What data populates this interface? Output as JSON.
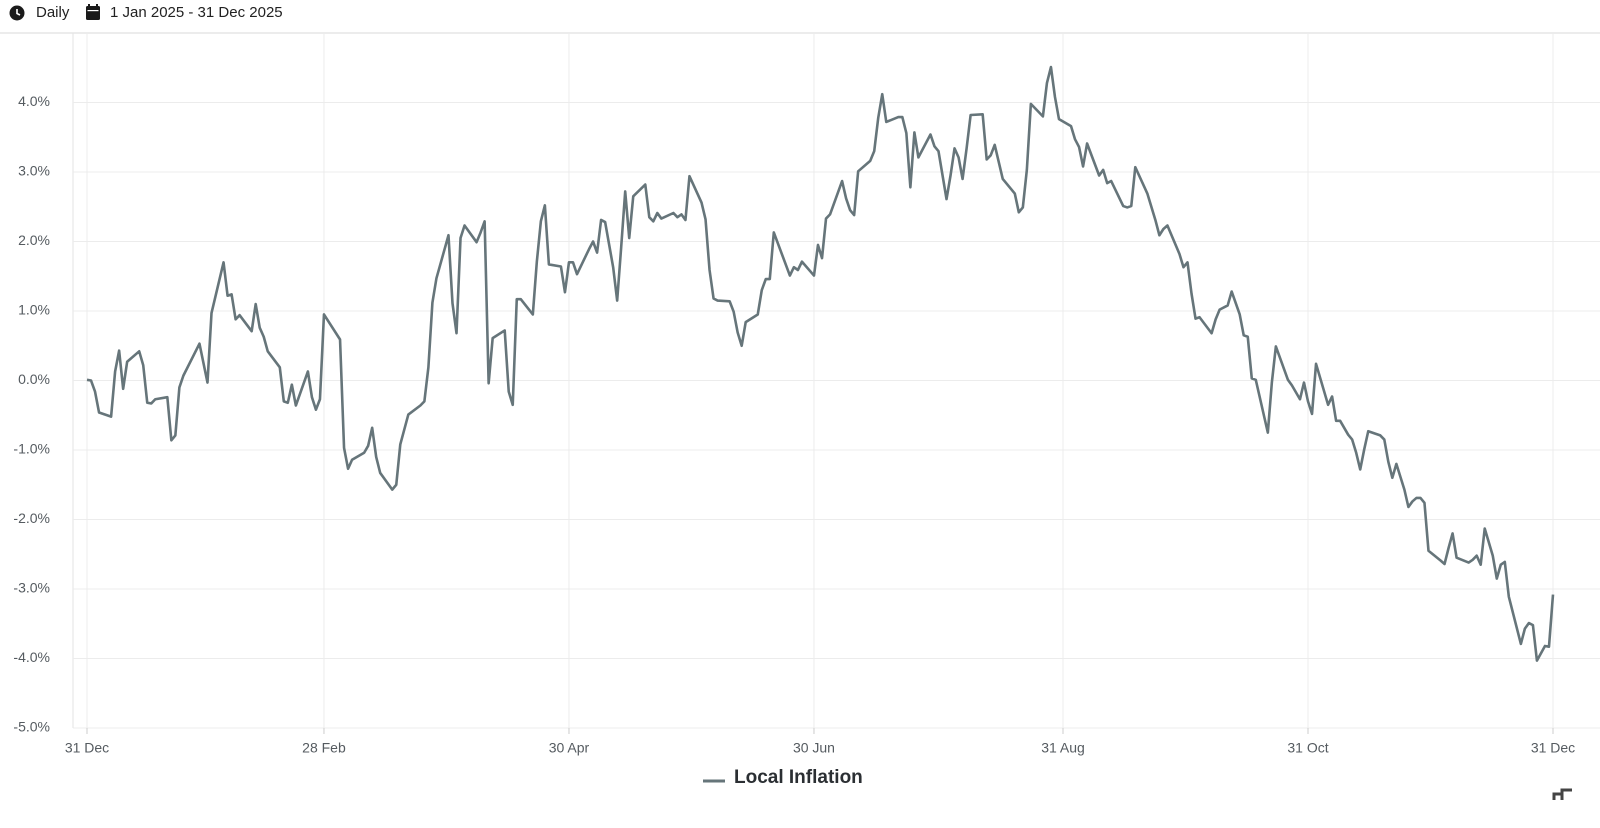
{
  "header": {
    "frequency": "Daily",
    "date_range": "1 Jan 2025 - 31 Dec 2025"
  },
  "chart_data": {
    "type": "line",
    "x": [
      "2024-12-31",
      "2025-01-01",
      "2025-01-02",
      "2025-01-03",
      "2025-01-06",
      "2025-01-07",
      "2025-01-08",
      "2025-01-09",
      "2025-01-10",
      "2025-01-13",
      "2025-01-14",
      "2025-01-15",
      "2025-01-16",
      "2025-01-17",
      "2025-01-20",
      "2025-01-21",
      "2025-01-22",
      "2025-01-23",
      "2025-01-24",
      "2025-01-28",
      "2025-01-30",
      "2025-01-31",
      "2025-02-03",
      "2025-02-04",
      "2025-02-05",
      "2025-02-06",
      "2025-02-07",
      "2025-02-10",
      "2025-02-11",
      "2025-02-12",
      "2025-02-13",
      "2025-02-14",
      "2025-02-17",
      "2025-02-18",
      "2025-02-19",
      "2025-02-20",
      "2025-02-21",
      "2025-02-24",
      "2025-02-25",
      "2025-02-26",
      "2025-02-27",
      "2025-02-28",
      "2025-03-04",
      "2025-03-05",
      "2025-03-06",
      "2025-03-07",
      "2025-03-10",
      "2025-03-11",
      "2025-03-12",
      "2025-03-13",
      "2025-03-14",
      "2025-03-17",
      "2025-03-18",
      "2025-03-19",
      "2025-03-21",
      "2025-03-24",
      "2025-03-25",
      "2025-03-26",
      "2025-03-27",
      "2025-03-28",
      "2025-03-31",
      "2025-04-01",
      "2025-04-02",
      "2025-04-03",
      "2025-04-04",
      "2025-04-07",
      "2025-04-08",
      "2025-04-09",
      "2025-04-10",
      "2025-04-11",
      "2025-04-14",
      "2025-04-15",
      "2025-04-16",
      "2025-04-17",
      "2025-04-18",
      "2025-04-21",
      "2025-04-22",
      "2025-04-23",
      "2025-04-24",
      "2025-04-25",
      "2025-04-28",
      "2025-04-29",
      "2025-04-30",
      "2025-05-01",
      "2025-05-02",
      "2025-05-05",
      "2025-05-06",
      "2025-05-07",
      "2025-05-08",
      "2025-05-09",
      "2025-05-11",
      "2025-05-12",
      "2025-05-13",
      "2025-05-14",
      "2025-05-15",
      "2025-05-16",
      "2025-05-19",
      "2025-05-20",
      "2025-05-21",
      "2025-05-22",
      "2025-05-23",
      "2025-05-26",
      "2025-05-27",
      "2025-05-28",
      "2025-05-29",
      "2025-05-30",
      "2025-06-02",
      "2025-06-03",
      "2025-06-04",
      "2025-06-05",
      "2025-06-06",
      "2025-06-09",
      "2025-06-10",
      "2025-06-11",
      "2025-06-12",
      "2025-06-13",
      "2025-06-16",
      "2025-06-17",
      "2025-06-18",
      "2025-06-19",
      "2025-06-20",
      "2025-06-24",
      "2025-06-25",
      "2025-06-26",
      "2025-06-27",
      "2025-06-30",
      "2025-07-01",
      "2025-07-02",
      "2025-07-03",
      "2025-07-04",
      "2025-07-07",
      "2025-07-08",
      "2025-07-09",
      "2025-07-10",
      "2025-07-11",
      "2025-07-14",
      "2025-07-15",
      "2025-07-16",
      "2025-07-17",
      "2025-07-18",
      "2025-07-21",
      "2025-07-22",
      "2025-07-23",
      "2025-07-24",
      "2025-07-25",
      "2025-07-26",
      "2025-07-29",
      "2025-07-30",
      "2025-07-31",
      "2025-08-02",
      "2025-08-03",
      "2025-08-04",
      "2025-08-05",
      "2025-08-06",
      "2025-08-07",
      "2025-08-08",
      "2025-08-11",
      "2025-08-12",
      "2025-08-13",
      "2025-08-14",
      "2025-08-16",
      "2025-08-19",
      "2025-08-20",
      "2025-08-21",
      "2025-08-22",
      "2025-08-23",
      "2025-08-26",
      "2025-08-27",
      "2025-08-28",
      "2025-08-29",
      "2025-08-30",
      "2025-09-02",
      "2025-09-03",
      "2025-09-04",
      "2025-09-05",
      "2025-09-06",
      "2025-09-09",
      "2025-09-10",
      "2025-09-11",
      "2025-09-12",
      "2025-09-15",
      "2025-09-16",
      "2025-09-17",
      "2025-09-18",
      "2025-09-21",
      "2025-09-23",
      "2025-09-24",
      "2025-09-25",
      "2025-09-26",
      "2025-09-29",
      "2025-09-30",
      "2025-10-01",
      "2025-10-02",
      "2025-10-03",
      "2025-10-04",
      "2025-10-07",
      "2025-10-08",
      "2025-10-09",
      "2025-10-11",
      "2025-10-12",
      "2025-10-14",
      "2025-10-15",
      "2025-10-16",
      "2025-10-17",
      "2025-10-18",
      "2025-10-21",
      "2025-10-22",
      "2025-10-23",
      "2025-10-26",
      "2025-10-27",
      "2025-10-29",
      "2025-10-30",
      "2025-10-31",
      "2025-11-01",
      "2025-11-02",
      "2025-11-05",
      "2025-11-06",
      "2025-11-07",
      "2025-11-08",
      "2025-11-10",
      "2025-11-11",
      "2025-11-12",
      "2025-11-13",
      "2025-11-14",
      "2025-11-15",
      "2025-11-18",
      "2025-11-19",
      "2025-11-20",
      "2025-11-21",
      "2025-11-22",
      "2025-11-24",
      "2025-11-25",
      "2025-11-26",
      "2025-11-27",
      "2025-11-28",
      "2025-11-29",
      "2025-11-30",
      "2025-12-03",
      "2025-12-04",
      "2025-12-05",
      "2025-12-06",
      "2025-12-07",
      "2025-12-10",
      "2025-12-11",
      "2025-12-12",
      "2025-12-13",
      "2025-12-14",
      "2025-12-16",
      "2025-12-17",
      "2025-12-18",
      "2025-12-19",
      "2025-12-20",
      "2025-12-23",
      "2025-12-24",
      "2025-12-25",
      "2025-12-26",
      "2025-12-27",
      "2025-12-29",
      "2025-12-30",
      "2025-12-31"
    ],
    "series": [
      {
        "name": "Local Inflation",
        "color": "#66757a",
        "values": [
          0.01,
          0.0,
          -0.16,
          -0.46,
          -0.52,
          0.13,
          0.43,
          -0.12,
          0.27,
          0.42,
          0.22,
          -0.32,
          -0.33,
          -0.27,
          -0.24,
          -0.86,
          -0.79,
          -0.1,
          0.07,
          0.53,
          -0.03,
          0.97,
          1.7,
          1.22,
          1.24,
          0.88,
          0.94,
          0.71,
          1.1,
          0.76,
          0.63,
          0.42,
          0.19,
          -0.3,
          -0.32,
          -0.06,
          -0.36,
          0.13,
          -0.24,
          -0.42,
          -0.27,
          0.95,
          0.59,
          -0.97,
          -1.27,
          -1.14,
          -1.04,
          -0.94,
          -0.68,
          -1.1,
          -1.33,
          -1.57,
          -1.5,
          -0.92,
          -0.49,
          -0.36,
          -0.3,
          0.19,
          1.12,
          1.47,
          2.09,
          1.11,
          0.68,
          2.05,
          2.23,
          1.99,
          2.13,
          2.29,
          -0.04,
          0.61,
          0.72,
          -0.16,
          -0.35,
          1.17,
          1.17,
          0.95,
          1.71,
          2.29,
          2.52,
          1.67,
          1.64,
          1.27,
          1.7,
          1.7,
          1.53,
          1.89,
          2.0,
          1.84,
          2.31,
          2.28,
          1.63,
          1.15,
          1.92,
          2.72,
          2.05,
          2.65,
          2.82,
          2.35,
          2.29,
          2.41,
          2.33,
          2.41,
          2.35,
          2.39,
          2.31,
          2.94,
          2.56,
          2.32,
          1.59,
          1.18,
          1.15,
          1.14,
          0.99,
          0.69,
          0.5,
          0.84,
          0.95,
          1.3,
          1.46,
          1.46,
          2.13,
          1.51,
          1.63,
          1.59,
          1.71,
          1.51,
          1.95,
          1.76,
          2.33,
          2.39,
          2.87,
          2.62,
          2.45,
          2.38,
          3.01,
          3.16,
          3.3,
          3.78,
          4.12,
          3.72,
          3.79,
          3.79,
          3.56,
          2.78,
          3.57,
          3.21,
          3.54,
          3.37,
          3.3,
          2.61,
          2.95,
          3.34,
          3.21,
          2.9,
          3.34,
          3.82,
          3.83,
          3.18,
          3.24,
          3.39,
          2.9,
          2.69,
          2.42,
          2.49,
          3.03,
          3.98,
          3.8,
          4.28,
          4.51,
          4.08,
          3.76,
          3.66,
          3.47,
          3.36,
          3.08,
          3.41,
          2.95,
          3.03,
          2.84,
          2.87,
          2.51,
          2.49,
          2.51,
          3.07,
          2.69,
          2.31,
          2.09,
          2.18,
          2.23,
          1.82,
          1.63,
          1.7,
          1.25,
          0.89,
          0.91,
          0.68,
          0.88,
          1.02,
          1.08,
          1.28,
          0.95,
          0.65,
          0.63,
          0.03,
          0.01,
          -0.75,
          -0.03,
          0.49,
          0.01,
          -0.07,
          -0.27,
          -0.03,
          -0.3,
          -0.48,
          0.24,
          -0.35,
          -0.23,
          -0.58,
          -0.58,
          -0.78,
          -0.85,
          -1.04,
          -1.28,
          -0.99,
          -0.73,
          -0.79,
          -0.85,
          -1.17,
          -1.4,
          -1.2,
          -1.57,
          -1.82,
          -1.74,
          -1.69,
          -1.69,
          -1.76,
          -2.45,
          -2.59,
          -2.64,
          -2.41,
          -2.2,
          -2.55,
          -2.62,
          -2.58,
          -2.52,
          -2.65,
          -2.13,
          -2.52,
          -2.85,
          -2.65,
          -2.61,
          -3.11,
          -3.79,
          -3.57,
          -3.49,
          -3.52,
          -4.03,
          -3.82,
          -3.83,
          -3.08
        ]
      }
    ],
    "xlim": [
      "2024-12-31",
      "2025-12-31"
    ],
    "xticks": [
      {
        "value": "2024-12-31",
        "label": "31 Dec"
      },
      {
        "value": "2025-02-28",
        "label": "28 Feb"
      },
      {
        "value": "2025-04-30",
        "label": "30 Apr"
      },
      {
        "value": "2025-06-30",
        "label": "30 Jun"
      },
      {
        "value": "2025-08-31",
        "label": "31 Aug"
      },
      {
        "value": "2025-10-31",
        "label": "31 Oct"
      },
      {
        "value": "2025-12-31",
        "label": "31 Dec"
      }
    ],
    "ylim": [
      -5,
      5
    ],
    "yticks": [
      {
        "value": -5,
        "label": "-5.0%"
      },
      {
        "value": -4,
        "label": "-4.0%"
      },
      {
        "value": -3,
        "label": "-3.0%"
      },
      {
        "value": -2,
        "label": "-2.0%"
      },
      {
        "value": -1,
        "label": "-1.0%"
      },
      {
        "value": 0,
        "label": "0.0%"
      },
      {
        "value": 1,
        "label": "1.0%"
      },
      {
        "value": 2,
        "label": "2.0%"
      },
      {
        "value": 3,
        "label": "3.0%"
      },
      {
        "value": 4,
        "label": "4.0%"
      }
    ],
    "grid": true,
    "legend": "bottom"
  }
}
